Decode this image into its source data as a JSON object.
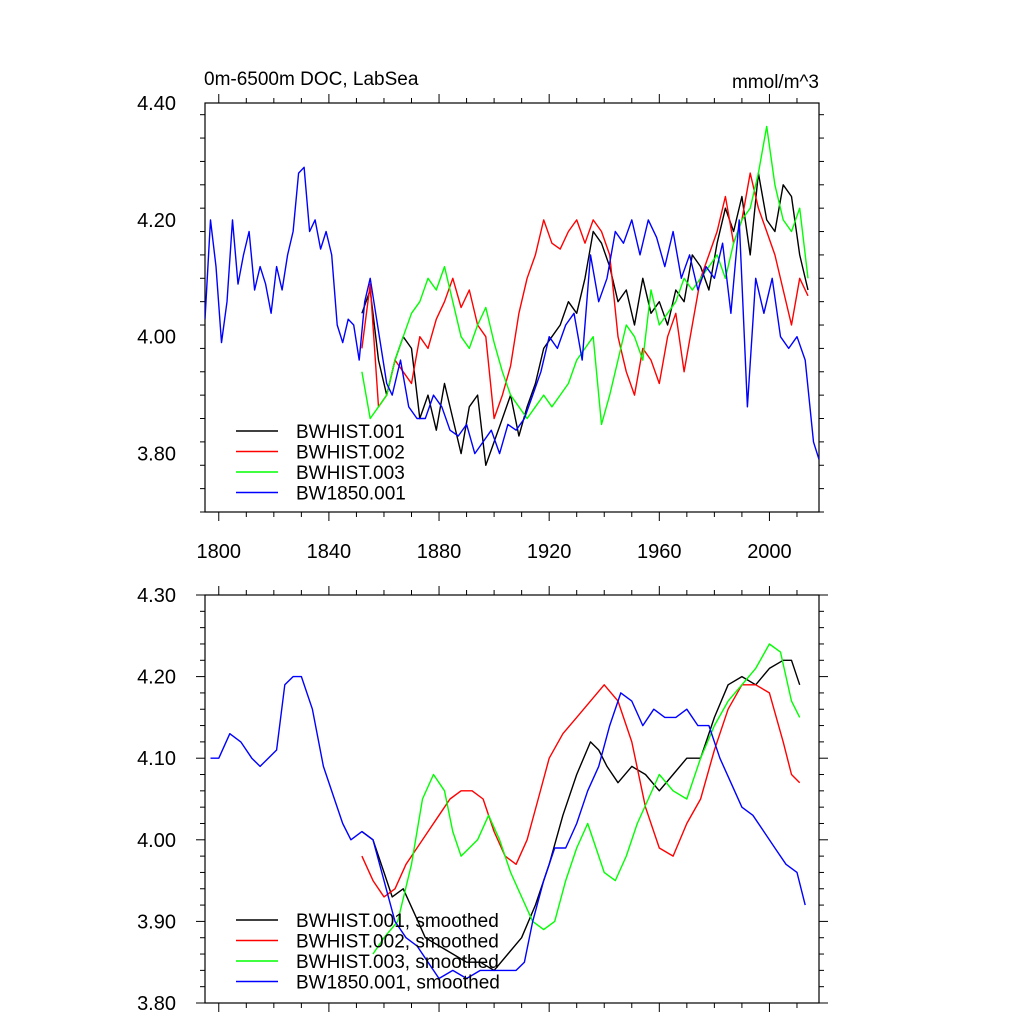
{
  "chart_data": [
    {
      "type": "line",
      "title_left": "0m-6500m DOC, LabSea",
      "title_right": "mmol/m^3",
      "xlabel": "",
      "ylabel": "",
      "xlim": [
        1795,
        2018
      ],
      "ylim": [
        3.7,
        4.4
      ],
      "yticks": [
        "4.40",
        "4.20",
        "4.00",
        "3.80"
      ],
      "xticks": [
        "1800",
        "1840",
        "1880",
        "1920",
        "1960",
        "2000"
      ],
      "legend_position": "bottom-left",
      "series": [
        {
          "name": "BWHIST.001",
          "color": "#000000",
          "x": [
            1852,
            1855,
            1858,
            1861,
            1864,
            1867,
            1870,
            1873,
            1876,
            1879,
            1882,
            1885,
            1888,
            1891,
            1894,
            1897,
            1900,
            1903,
            1906,
            1909,
            1912,
            1915,
            1918,
            1921,
            1924,
            1927,
            1930,
            1933,
            1936,
            1939,
            1942,
            1945,
            1948,
            1951,
            1954,
            1957,
            1960,
            1963,
            1966,
            1969,
            1972,
            1975,
            1978,
            1981,
            1984,
            1987,
            1990,
            1993,
            1996,
            1999,
            2002,
            2005,
            2008,
            2011,
            2014
          ],
          "values": [
            4.04,
            4.08,
            3.96,
            3.9,
            3.96,
            4.0,
            3.98,
            3.86,
            3.9,
            3.84,
            3.92,
            3.86,
            3.8,
            3.88,
            3.9,
            3.78,
            3.82,
            3.86,
            3.9,
            3.83,
            3.88,
            3.92,
            3.98,
            4.0,
            4.02,
            4.06,
            4.04,
            4.1,
            4.18,
            4.16,
            4.12,
            4.06,
            4.08,
            4.02,
            4.1,
            4.04,
            4.06,
            4.02,
            4.08,
            4.06,
            4.14,
            4.12,
            4.08,
            4.16,
            4.22,
            4.18,
            4.24,
            4.14,
            4.28,
            4.2,
            4.18,
            4.26,
            4.24,
            4.14,
            4.08
          ]
        },
        {
          "name": "BWHIST.002",
          "color": "#ff0000",
          "x": [
            1852,
            1855,
            1858,
            1861,
            1864,
            1867,
            1870,
            1873,
            1876,
            1879,
            1882,
            1885,
            1888,
            1891,
            1894,
            1897,
            1900,
            1903,
            1906,
            1909,
            1912,
            1915,
            1918,
            1921,
            1924,
            1927,
            1930,
            1933,
            1936,
            1939,
            1942,
            1945,
            1948,
            1951,
            1954,
            1957,
            1960,
            1963,
            1966,
            1969,
            1972,
            1975,
            1978,
            1981,
            1984,
            1987,
            1990,
            1993,
            1996,
            1999,
            2002,
            2005,
            2008,
            2011,
            2014
          ],
          "values": [
            3.98,
            4.09,
            3.88,
            3.9,
            3.96,
            3.94,
            3.92,
            4.0,
            3.98,
            4.03,
            4.06,
            4.1,
            4.05,
            4.08,
            4.02,
            4.0,
            3.86,
            3.9,
            3.95,
            4.04,
            4.1,
            4.14,
            4.2,
            4.16,
            4.15,
            4.18,
            4.2,
            4.16,
            4.2,
            4.18,
            4.14,
            4.0,
            3.94,
            3.9,
            3.98,
            3.96,
            3.92,
            4.0,
            4.04,
            3.94,
            4.02,
            4.1,
            4.14,
            4.18,
            4.24,
            4.16,
            4.2,
            4.28,
            4.22,
            4.18,
            4.14,
            4.08,
            4.02,
            4.1,
            4.07
          ]
        },
        {
          "name": "BWHIST.003",
          "color": "#00ff00",
          "x": [
            1852,
            1855,
            1858,
            1861,
            1864,
            1867,
            1870,
            1873,
            1876,
            1879,
            1882,
            1885,
            1888,
            1891,
            1894,
            1897,
            1900,
            1903,
            1906,
            1909,
            1912,
            1915,
            1918,
            1921,
            1924,
            1927,
            1930,
            1933,
            1936,
            1939,
            1942,
            1945,
            1948,
            1951,
            1954,
            1957,
            1960,
            1963,
            1966,
            1969,
            1972,
            1975,
            1978,
            1981,
            1984,
            1987,
            1990,
            1993,
            1996,
            1999,
            2002,
            2005,
            2008,
            2011,
            2014
          ],
          "values": [
            3.94,
            3.86,
            3.88,
            3.9,
            3.96,
            4.0,
            4.04,
            4.06,
            4.1,
            4.08,
            4.12,
            4.06,
            4.0,
            3.98,
            4.02,
            4.05,
            3.99,
            3.94,
            3.9,
            3.88,
            3.86,
            3.88,
            3.9,
            3.88,
            3.9,
            3.92,
            3.96,
            3.98,
            4.0,
            3.85,
            3.9,
            3.96,
            4.02,
            4.0,
            3.96,
            4.08,
            4.02,
            4.04,
            4.06,
            4.1,
            4.08,
            4.1,
            4.12,
            4.14,
            4.1,
            4.16,
            4.2,
            4.22,
            4.28,
            4.36,
            4.26,
            4.2,
            4.18,
            4.22,
            4.1
          ]
        },
        {
          "name": "BW1850.001",
          "color": "#0000ff",
          "x": [
            1795,
            1797,
            1799,
            1801,
            1803,
            1805,
            1807,
            1809,
            1811,
            1813,
            1815,
            1817,
            1819,
            1821,
            1823,
            1825,
            1827,
            1829,
            1831,
            1833,
            1835,
            1837,
            1839,
            1841,
            1843,
            1845,
            1847,
            1849,
            1851,
            1853,
            1855,
            1857,
            1859,
            1861,
            1863,
            1866,
            1869,
            1872,
            1875,
            1878,
            1881,
            1884,
            1887,
            1890,
            1893,
            1896,
            1899,
            1902,
            1905,
            1908,
            1911,
            1914,
            1917,
            1920,
            1923,
            1926,
            1929,
            1932,
            1935,
            1938,
            1941,
            1944,
            1947,
            1950,
            1953,
            1956,
            1959,
            1962,
            1965,
            1968,
            1971,
            1974,
            1977,
            1980,
            1983,
            1986,
            1989,
            1992,
            1995,
            1998,
            2001,
            2004,
            2007,
            2010,
            2013,
            2016,
            2018
          ],
          "values": [
            4.03,
            4.2,
            4.12,
            3.99,
            4.06,
            4.2,
            4.09,
            4.14,
            4.18,
            4.08,
            4.12,
            4.09,
            4.04,
            4.12,
            4.08,
            4.14,
            4.18,
            4.28,
            4.29,
            4.18,
            4.2,
            4.15,
            4.18,
            4.14,
            4.02,
            3.99,
            4.03,
            4.02,
            3.96,
            4.06,
            4.1,
            4.04,
            3.98,
            3.92,
            3.9,
            3.96,
            3.88,
            3.86,
            3.86,
            3.9,
            3.88,
            3.84,
            3.83,
            3.85,
            3.8,
            3.82,
            3.84,
            3.8,
            3.85,
            3.84,
            3.86,
            3.9,
            3.94,
            4.0,
            3.98,
            4.02,
            4.04,
            3.96,
            4.14,
            4.06,
            4.1,
            4.18,
            4.16,
            4.2,
            4.14,
            4.2,
            4.17,
            4.12,
            4.18,
            4.1,
            4.14,
            4.08,
            4.12,
            4.1,
            4.16,
            4.04,
            4.2,
            3.88,
            4.1,
            4.04,
            4.1,
            4.0,
            3.98,
            4.0,
            3.96,
            3.82,
            3.79
          ]
        }
      ]
    },
    {
      "type": "line",
      "title_left": "",
      "title_right": "",
      "xlabel": "",
      "ylabel": "",
      "xlim": [
        1795,
        2018
      ],
      "ylim": [
        3.8,
        4.3
      ],
      "yticks": [
        "4.30",
        "4.20",
        "4.10",
        "4.00",
        "3.90",
        "3.80"
      ],
      "legend_position": "bottom-left",
      "series": [
        {
          "name": "BWHIST.001, smoothed",
          "color": "#000000",
          "x": [
            1852,
            1856,
            1860,
            1863,
            1867,
            1871,
            1875,
            1880,
            1885,
            1890,
            1895,
            1900,
            1905,
            1910,
            1915,
            1920,
            1925,
            1930,
            1935,
            1938,
            1941,
            1945,
            1950,
            1955,
            1960,
            1965,
            1970,
            1975,
            1980,
            1985,
            1990,
            1995,
            2000,
            2005,
            2008,
            2011
          ],
          "values": [
            4.01,
            4.0,
            3.96,
            3.93,
            3.94,
            3.91,
            3.88,
            3.87,
            3.86,
            3.85,
            3.85,
            3.84,
            3.86,
            3.88,
            3.92,
            3.97,
            4.03,
            4.08,
            4.12,
            4.11,
            4.09,
            4.07,
            4.09,
            4.08,
            4.06,
            4.08,
            4.1,
            4.1,
            4.15,
            4.19,
            4.2,
            4.19,
            4.21,
            4.22,
            4.22,
            4.19
          ]
        },
        {
          "name": "BWHIST.002, smoothed",
          "color": "#ff0000",
          "x": [
            1852,
            1856,
            1860,
            1864,
            1868,
            1872,
            1876,
            1880,
            1884,
            1888,
            1892,
            1896,
            1900,
            1904,
            1908,
            1912,
            1916,
            1920,
            1925,
            1930,
            1935,
            1940,
            1945,
            1950,
            1955,
            1960,
            1965,
            1970,
            1975,
            1980,
            1985,
            1990,
            1995,
            2000,
            2005,
            2008,
            2011
          ],
          "values": [
            3.98,
            3.95,
            3.93,
            3.94,
            3.97,
            3.99,
            4.01,
            4.03,
            4.05,
            4.06,
            4.06,
            4.05,
            4.01,
            3.98,
            3.97,
            4.0,
            4.05,
            4.1,
            4.13,
            4.15,
            4.17,
            4.19,
            4.17,
            4.12,
            4.04,
            3.99,
            3.98,
            4.02,
            4.05,
            4.11,
            4.16,
            4.19,
            4.19,
            4.18,
            4.12,
            4.08,
            4.07
          ]
        },
        {
          "name": "BWHIST.003, smoothed",
          "color": "#00ff00",
          "x": [
            1856,
            1860,
            1865,
            1870,
            1874,
            1878,
            1882,
            1885,
            1888,
            1891,
            1894,
            1898,
            1902,
            1906,
            1910,
            1914,
            1918,
            1922,
            1926,
            1930,
            1934,
            1937,
            1940,
            1944,
            1948,
            1952,
            1956,
            1960,
            1965,
            1970,
            1975,
            1980,
            1985,
            1990,
            1995,
            2000,
            2004,
            2008,
            2011
          ],
          "values": [
            3.86,
            3.88,
            3.9,
            3.97,
            4.05,
            4.08,
            4.06,
            4.01,
            3.98,
            3.99,
            4.0,
            4.03,
            4.0,
            3.96,
            3.93,
            3.9,
            3.89,
            3.9,
            3.95,
            3.99,
            4.02,
            3.99,
            3.96,
            3.95,
            3.98,
            4.02,
            4.05,
            4.08,
            4.06,
            4.05,
            4.1,
            4.14,
            4.17,
            4.19,
            4.21,
            4.24,
            4.23,
            4.17,
            4.15
          ]
        },
        {
          "name": "BW1850.001, smoothed",
          "color": "#0000ff",
          "x": [
            1797,
            1800,
            1804,
            1808,
            1812,
            1815,
            1818,
            1821,
            1824,
            1827,
            1830,
            1834,
            1838,
            1842,
            1845,
            1848,
            1852,
            1856,
            1860,
            1864,
            1868,
            1872,
            1876,
            1880,
            1885,
            1890,
            1895,
            1900,
            1905,
            1908,
            1911,
            1914,
            1918,
            1922,
            1926,
            1930,
            1934,
            1938,
            1942,
            1946,
            1950,
            1954,
            1958,
            1962,
            1966,
            1970,
            1974,
            1978,
            1982,
            1986,
            1990,
            1994,
            1998,
            2002,
            2006,
            2010,
            2013
          ],
          "values": [
            4.1,
            4.1,
            4.13,
            4.12,
            4.1,
            4.09,
            4.1,
            4.11,
            4.19,
            4.2,
            4.2,
            4.16,
            4.09,
            4.05,
            4.02,
            4.0,
            4.01,
            4.0,
            3.95,
            3.9,
            3.88,
            3.87,
            3.85,
            3.83,
            3.84,
            3.83,
            3.84,
            3.84,
            3.84,
            3.84,
            3.85,
            3.9,
            3.95,
            3.99,
            3.99,
            4.02,
            4.06,
            4.09,
            4.14,
            4.18,
            4.17,
            4.14,
            4.16,
            4.15,
            4.15,
            4.16,
            4.14,
            4.14,
            4.1,
            4.07,
            4.04,
            4.03,
            4.01,
            3.99,
            3.97,
            3.96,
            3.92
          ]
        }
      ]
    }
  ]
}
